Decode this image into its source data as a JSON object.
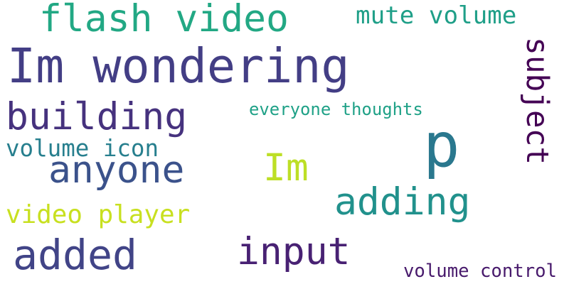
{
  "words": [
    {
      "text": "Im wondering",
      "color": "#433e85"
    },
    {
      "text": "flash video",
      "color": "#22a884"
    },
    {
      "text": "mute volume",
      "color": "#1f9f88"
    },
    {
      "text": "building",
      "color": "#46327e"
    },
    {
      "text": "subject",
      "color": "#440154"
    },
    {
      "text": "p",
      "color": "#2a788e"
    },
    {
      "text": "everyone thoughts",
      "color": "#1fa187"
    },
    {
      "text": "volume icon",
      "color": "#277f8e"
    },
    {
      "text": "anyone",
      "color": "#3b528b"
    },
    {
      "text": "Im",
      "color": "#bddf26"
    },
    {
      "text": "adding",
      "color": "#21918c"
    },
    {
      "text": "video player",
      "color": "#c8e020"
    },
    {
      "text": "added",
      "color": "#414487"
    },
    {
      "text": "input",
      "color": "#482173"
    },
    {
      "text": "volume control",
      "color": "#481a6c"
    }
  ]
}
